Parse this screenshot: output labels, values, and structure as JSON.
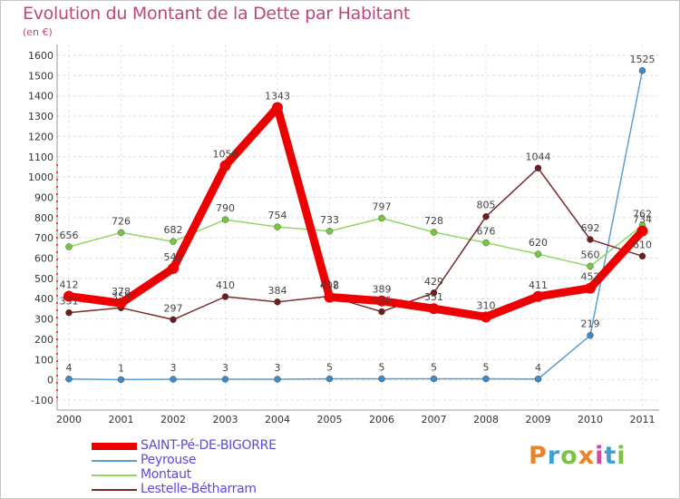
{
  "title": "Evolution du Montant de la Dette par Habitant",
  "unit": "(en €)",
  "logo_text": "Proxiti",
  "chart_data": {
    "type": "line",
    "title": "Evolution du Montant de la Dette par Habitant",
    "ylabel": "(en €)",
    "xlabel": "",
    "categories": [
      "2000",
      "2001",
      "2002",
      "2003",
      "2004",
      "2005",
      "2006",
      "2007",
      "2008",
      "2009",
      "2010",
      "2011"
    ],
    "ylim": [
      -100,
      1600
    ],
    "yticks": [
      -100,
      0,
      100,
      200,
      300,
      400,
      500,
      600,
      700,
      800,
      900,
      1000,
      1100,
      1200,
      1300,
      1400,
      1500,
      1600
    ],
    "ytick_labels": [
      "-100",
      "0",
      "100",
      "200",
      "300",
      "400",
      "500",
      "600",
      "700",
      "800",
      "900",
      "1000",
      "1100",
      "1200",
      "1300",
      "1400",
      "1500",
      "1600"
    ],
    "grid": true,
    "series": [
      {
        "name": "SAINT-Pé-DE-BIGORRE",
        "color": "#ee0000",
        "values": [
          412,
          378,
          549,
          1056,
          1343,
          408,
          389,
          351,
          310,
          411,
          452,
          734
        ],
        "labels": [
          "412",
          "378",
          "549",
          "1056",
          "1343",
          "408",
          "389",
          "351",
          "310",
          "411",
          "452",
          "734"
        ]
      },
      {
        "name": "Peyrouse",
        "color": "#5a9fd4",
        "values": [
          4,
          1,
          3,
          3,
          3,
          5,
          5,
          5,
          5,
          4,
          219,
          1525
        ],
        "labels": [
          "4",
          "1",
          "3",
          "3",
          "3",
          "5",
          "5",
          "5",
          "5",
          "4",
          "219",
          "1525"
        ]
      },
      {
        "name": "Montaut",
        "color": "#90d860",
        "values": [
          656,
          726,
          682,
          790,
          754,
          733,
          797,
          728,
          676,
          620,
          560,
          762
        ],
        "labels": [
          "656",
          "726",
          "682",
          "790",
          "754",
          "733",
          "797",
          "728",
          "676",
          "620",
          "560",
          "762"
        ]
      },
      {
        "name": "Lestelle-Bétharram",
        "color": "#7a2a2a",
        "values": [
          331,
          355,
          297,
          410,
          384,
          412,
          336,
          429,
          805,
          1044,
          692,
          610
        ],
        "labels": [
          "331",
          "355",
          "297",
          "410",
          "384",
          "412",
          "336",
          "429",
          "805",
          "1044",
          "692",
          "610"
        ]
      }
    ]
  }
}
